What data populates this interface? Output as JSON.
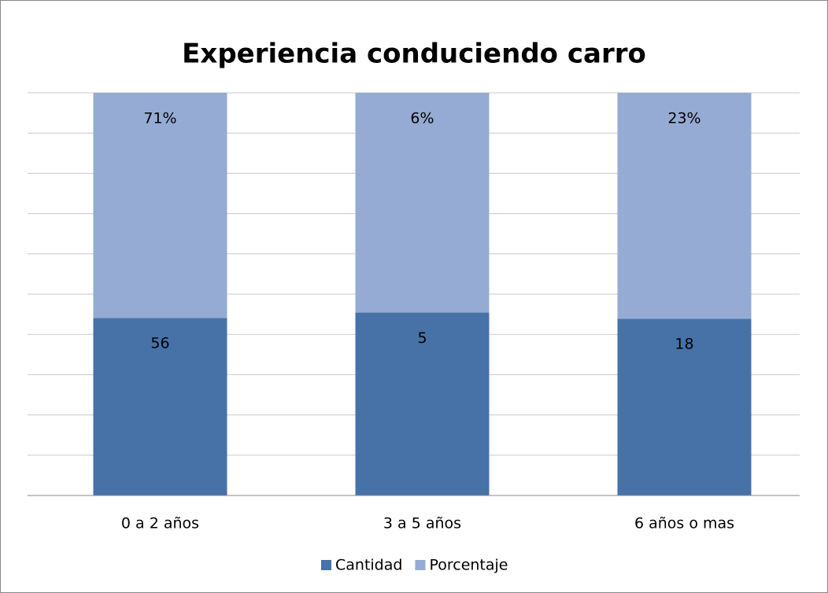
{
  "chart_data": {
    "type": "bar",
    "stacking": "percent",
    "title": "Experiencia conduciendo carro",
    "categories": [
      "0 a 2 años",
      "3 a 5 años",
      "6 años o mas"
    ],
    "series": [
      {
        "name": "Cantidad",
        "color": "#4672a8",
        "values": [
          56,
          5,
          18
        ]
      },
      {
        "name": "Porcentaje",
        "color": "#95abd3",
        "values": [
          71,
          6,
          23
        ],
        "value_labels": [
          "71%",
          "6%",
          "23%"
        ]
      }
    ],
    "grid": true,
    "legend": "bottom"
  }
}
